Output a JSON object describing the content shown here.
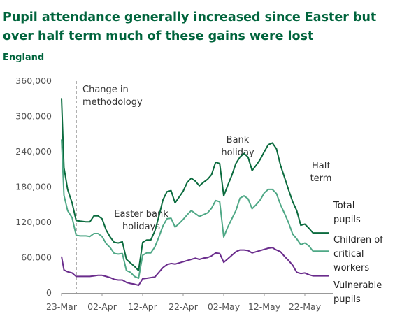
{
  "title_lines": [
    "Pupil attendance generally increased since Easter but",
    "over half term much of these gains were lost"
  ],
  "subtitle": "England",
  "colors": {
    "brand": "#00643C",
    "total": "#0B6B3E",
    "critical": "#4FA886",
    "vulnerable": "#6A2C8C",
    "axis": "#999999"
  },
  "chart_data": {
    "type": "line",
    "title": "Pupil attendance generally increased since Easter but over half term much of these gains were lost",
    "subtitle": "England",
    "ylim": [
      0,
      360000
    ],
    "y_ticks": [
      "0",
      "60,000",
      "120,000",
      "180,000",
      "240,000",
      "300,000",
      "360,000"
    ],
    "y_tick_values": [
      0,
      60000,
      120000,
      180000,
      240000,
      300000,
      360000
    ],
    "x_ticks": [
      "23-Mar",
      "02-Apr",
      "12-Apr",
      "22-Apr",
      "02-May",
      "12-May",
      "22-May"
    ],
    "x_tick_days": [
      0,
      10,
      20,
      30,
      40,
      50,
      60
    ],
    "x_range_days": [
      0,
      67
    ],
    "grid": false,
    "legend": "direct labels at line ends",
    "x": [
      0,
      0.6,
      1.5,
      2.6,
      3.6,
      4.6,
      6,
      7,
      8,
      9,
      10,
      11,
      12,
      13,
      14,
      15,
      16,
      17,
      18,
      19,
      20,
      21,
      22,
      23,
      24,
      25,
      26,
      27,
      28,
      29,
      30,
      31,
      32,
      33,
      34,
      35,
      36,
      37,
      38,
      39,
      40,
      41,
      42,
      43,
      44,
      45,
      46,
      47,
      48,
      49,
      50,
      51,
      52,
      53,
      54,
      55,
      56,
      57,
      58,
      59,
      60,
      61,
      62,
      63,
      64,
      65,
      66
    ],
    "series": [
      {
        "name": "Total pupils",
        "values": [
          331000,
          213000,
          176000,
          153000,
          123000,
          122000,
          121000,
          121000,
          131000,
          131000,
          126000,
          107000,
          95000,
          86000,
          85000,
          87000,
          57000,
          51000,
          45000,
          38000,
          86000,
          90000,
          90000,
          105000,
          130000,
          158000,
          172000,
          174000,
          153000,
          163000,
          173000,
          188000,
          195000,
          190000,
          182000,
          188000,
          193000,
          201000,
          222000,
          220000,
          165000,
          183000,
          200000,
          220000,
          231000,
          237000,
          231000,
          208000,
          217000,
          227000,
          240000,
          252000,
          255000,
          245000,
          217000,
          196000,
          175000,
          155000,
          140000,
          115000,
          117000,
          110000,
          102000,
          102000,
          102000,
          102000,
          102000
        ]
      },
      {
        "name": "Children of critical workers",
        "values": [
          261000,
          166000,
          140000,
          128000,
          98000,
          97000,
          97000,
          96000,
          101000,
          101000,
          96000,
          84000,
          77000,
          67000,
          66000,
          67000,
          38000,
          35000,
          28000,
          25000,
          64000,
          68000,
          68000,
          78000,
          95000,
          114000,
          126000,
          127000,
          112000,
          118000,
          125000,
          133000,
          140000,
          135000,
          130000,
          133000,
          136000,
          144000,
          157000,
          155000,
          95000,
          112000,
          126000,
          140000,
          161000,
          165000,
          160000,
          143000,
          150000,
          158000,
          170000,
          176000,
          176000,
          169000,
          150000,
          135000,
          119000,
          100000,
          92000,
          82000,
          85000,
          80000,
          71000,
          71000,
          71000,
          71000,
          71000
        ]
      },
      {
        "name": "Vulnerable pupils",
        "values": [
          62000,
          39000,
          36000,
          34000,
          28000,
          28000,
          28000,
          28000,
          29000,
          30000,
          30000,
          28000,
          26000,
          23000,
          22000,
          22000,
          18000,
          16000,
          15000,
          13000,
          24000,
          25000,
          26000,
          27000,
          35000,
          43000,
          48000,
          50000,
          49000,
          51000,
          53000,
          55000,
          57000,
          59000,
          57000,
          59000,
          60000,
          63000,
          68000,
          67000,
          52000,
          58000,
          64000,
          70000,
          73000,
          73000,
          72000,
          68000,
          70000,
          72000,
          74000,
          76000,
          77000,
          73000,
          70000,
          62000,
          55000,
          47000,
          35000,
          33000,
          34000,
          31000,
          29000,
          29000,
          29000,
          29000,
          29000
        ]
      }
    ],
    "annotations": [
      {
        "lines": [
          "Change in",
          "methodology"
        ],
        "day": 3.6,
        "type": "vline-dashed"
      },
      {
        "lines": [
          "Easter bank",
          "holidays"
        ],
        "day": 14
      },
      {
        "lines": [
          "Bank",
          "holiday"
        ],
        "day": 38.5
      },
      {
        "lines": [
          "Half",
          "term"
        ],
        "day": 60
      }
    ],
    "series_labels": [
      {
        "lines": [
          "Total",
          "pupils"
        ]
      },
      {
        "lines": [
          "Children of",
          "critical",
          "workers"
        ]
      },
      {
        "lines": [
          "Vulnerable",
          "pupils"
        ]
      }
    ]
  }
}
